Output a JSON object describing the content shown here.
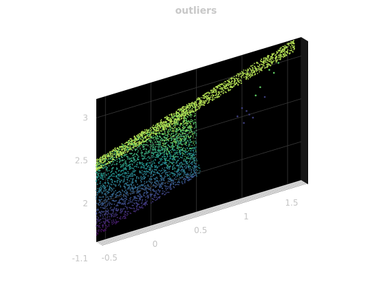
{
  "chart_data": {
    "type": "scatter",
    "projection": "3d",
    "title": "outliers",
    "xlabel": "",
    "ylabel": "",
    "zlabel": "",
    "background": "#000000",
    "grid": true,
    "colormap": [
      "#440154",
      "#3b528b",
      "#21918c",
      "#5ec962",
      "#a6d94e",
      "#d9ec63"
    ],
    "axes": {
      "x": {
        "ticks": [
          -0.5,
          0,
          0.5,
          1,
          1.5
        ],
        "tick_labels": [
          "-0.5",
          "0",
          "0.5",
          "1",
          "1.5"
        ],
        "range": [
          -0.6,
          1.65
        ]
      },
      "y": {
        "ticks": [
          -1.1
        ],
        "tick_labels": [
          "-1.1"
        ],
        "range": [
          -1.1,
          -1.06
        ]
      },
      "z": {
        "ticks": [
          2,
          2.5,
          3
        ],
        "tick_labels": [
          "2",
          "2.5",
          "3"
        ],
        "range": [
          1.55,
          3.22
        ]
      }
    },
    "point_cloud": {
      "upper_ridge": {
        "x_from": -0.6,
        "x_to": 1.58,
        "z_from": 2.5,
        "z_to": 3.2,
        "color_value": 0.85
      },
      "dense_body": {
        "x_from": -0.6,
        "x_to": 0.5,
        "z_bottom_from": 1.62,
        "z_bottom_to": 1.97,
        "color_low": 0.0,
        "color_high": 0.85
      },
      "outliers": [
        {
          "x": 0.95,
          "z": 2.52
        },
        {
          "x": 1.0,
          "z": 2.6
        },
        {
          "x": 1.05,
          "z": 2.55
        },
        {
          "x": 1.08,
          "z": 2.5
        },
        {
          "x": 1.12,
          "z": 2.45
        },
        {
          "x": 1.15,
          "z": 2.7
        },
        {
          "x": 1.2,
          "z": 2.78
        },
        {
          "x": 1.25,
          "z": 2.65
        },
        {
          "x": 1.3,
          "z": 2.95
        },
        {
          "x": 1.35,
          "z": 2.9
        },
        {
          "x": 1.4,
          "z": 3.0
        },
        {
          "x": 1.02,
          "z": 2.42
        }
      ]
    }
  }
}
